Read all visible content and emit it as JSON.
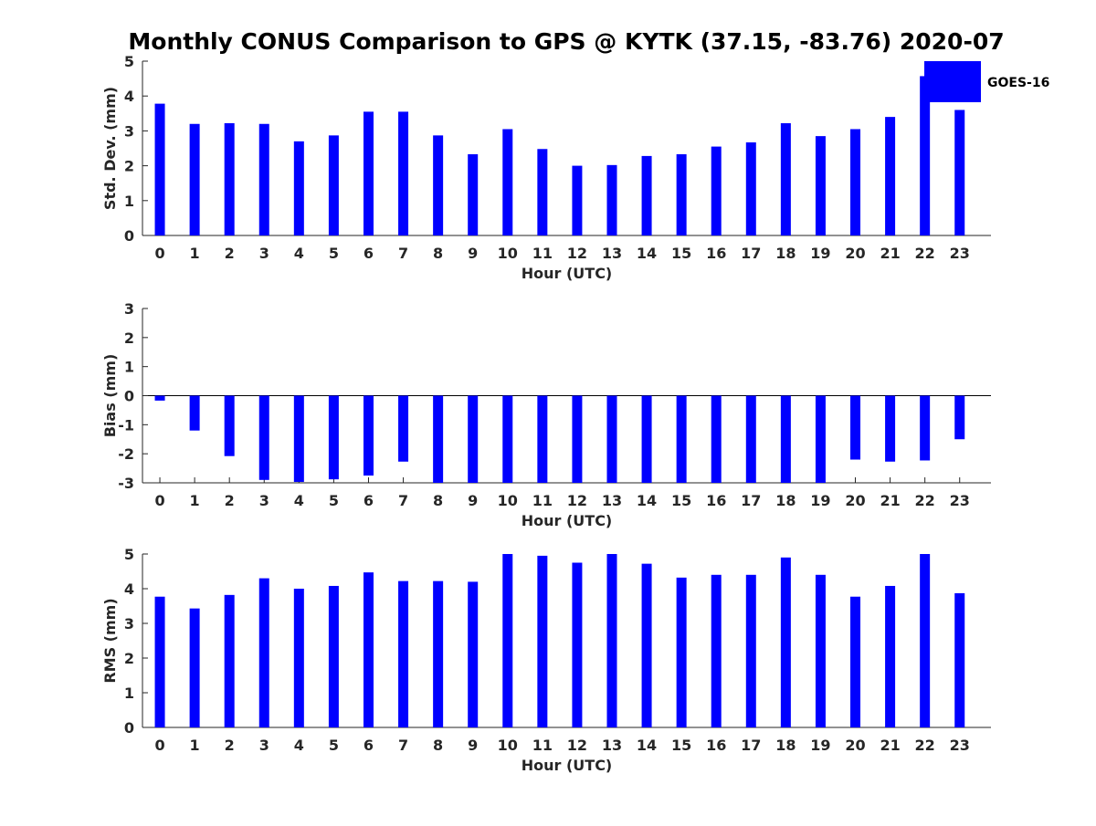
{
  "figure": {
    "title": "Monthly CONUS Comparison to GPS @ KYTK (37.15, -83.76) 2020-07",
    "bar_color": "#0000ff",
    "legend_label": "GOES-16"
  },
  "chart_data": [
    {
      "type": "bar",
      "title": "Monthly CONUS Comparison to GPS @ KYTK (37.15, -83.76) 2020-07",
      "xlabel": "Hour (UTC)",
      "ylabel": "Std. Dev. (mm)",
      "ylim": [
        0,
        5
      ],
      "yticks": [
        0,
        1,
        2,
        3,
        4,
        5
      ],
      "categories": [
        "0",
        "1",
        "2",
        "3",
        "4",
        "5",
        "6",
        "7",
        "8",
        "9",
        "10",
        "11",
        "12",
        "13",
        "14",
        "15",
        "16",
        "17",
        "18",
        "19",
        "20",
        "21",
        "22",
        "23"
      ],
      "series": [
        {
          "name": "GOES-16",
          "values": [
            3.78,
            3.2,
            3.22,
            3.2,
            2.7,
            2.87,
            3.55,
            3.55,
            2.87,
            2.33,
            3.05,
            2.48,
            2.0,
            2.02,
            2.28,
            2.33,
            2.55,
            2.67,
            3.22,
            2.85,
            3.05,
            3.4,
            4.57,
            3.6
          ]
        }
      ],
      "legend": "top-right",
      "grid": false
    },
    {
      "type": "bar",
      "xlabel": "Hour (UTC)",
      "ylabel": "Bias (mm)",
      "ylim": [
        -3,
        3
      ],
      "yticks": [
        -3,
        -2,
        -1,
        0,
        1,
        2,
        3
      ],
      "categories": [
        "0",
        "1",
        "2",
        "3",
        "4",
        "5",
        "6",
        "7",
        "8",
        "9",
        "10",
        "11",
        "12",
        "13",
        "14",
        "15",
        "16",
        "17",
        "18",
        "19",
        "20",
        "21",
        "22",
        "23"
      ],
      "series": [
        {
          "name": "GOES-16",
          "values": [
            -0.17,
            -1.2,
            -2.08,
            -2.9,
            -2.97,
            -2.88,
            -2.75,
            -2.27,
            -3.0,
            -3.0,
            -3.0,
            -3.0,
            -3.0,
            -3.0,
            -3.0,
            -3.0,
            -3.0,
            -3.0,
            -3.0,
            -3.0,
            -2.2,
            -2.27,
            -2.23,
            -1.5
          ]
        }
      ],
      "grid": false
    },
    {
      "type": "bar",
      "xlabel": "Hour (UTC)",
      "ylabel": "RMS (mm)",
      "ylim": [
        0,
        5
      ],
      "yticks": [
        0,
        1,
        2,
        3,
        4,
        5
      ],
      "categories": [
        "0",
        "1",
        "2",
        "3",
        "4",
        "5",
        "6",
        "7",
        "8",
        "9",
        "10",
        "11",
        "12",
        "13",
        "14",
        "15",
        "16",
        "17",
        "18",
        "19",
        "20",
        "21",
        "22",
        "23"
      ],
      "series": [
        {
          "name": "GOES-16",
          "values": [
            3.77,
            3.43,
            3.82,
            4.3,
            4.0,
            4.08,
            4.47,
            4.22,
            4.22,
            4.2,
            5.0,
            4.95,
            4.75,
            5.0,
            4.72,
            4.32,
            4.4,
            4.4,
            4.9,
            4.4,
            3.77,
            4.08,
            5.0,
            3.87
          ]
        }
      ],
      "grid": false
    }
  ]
}
